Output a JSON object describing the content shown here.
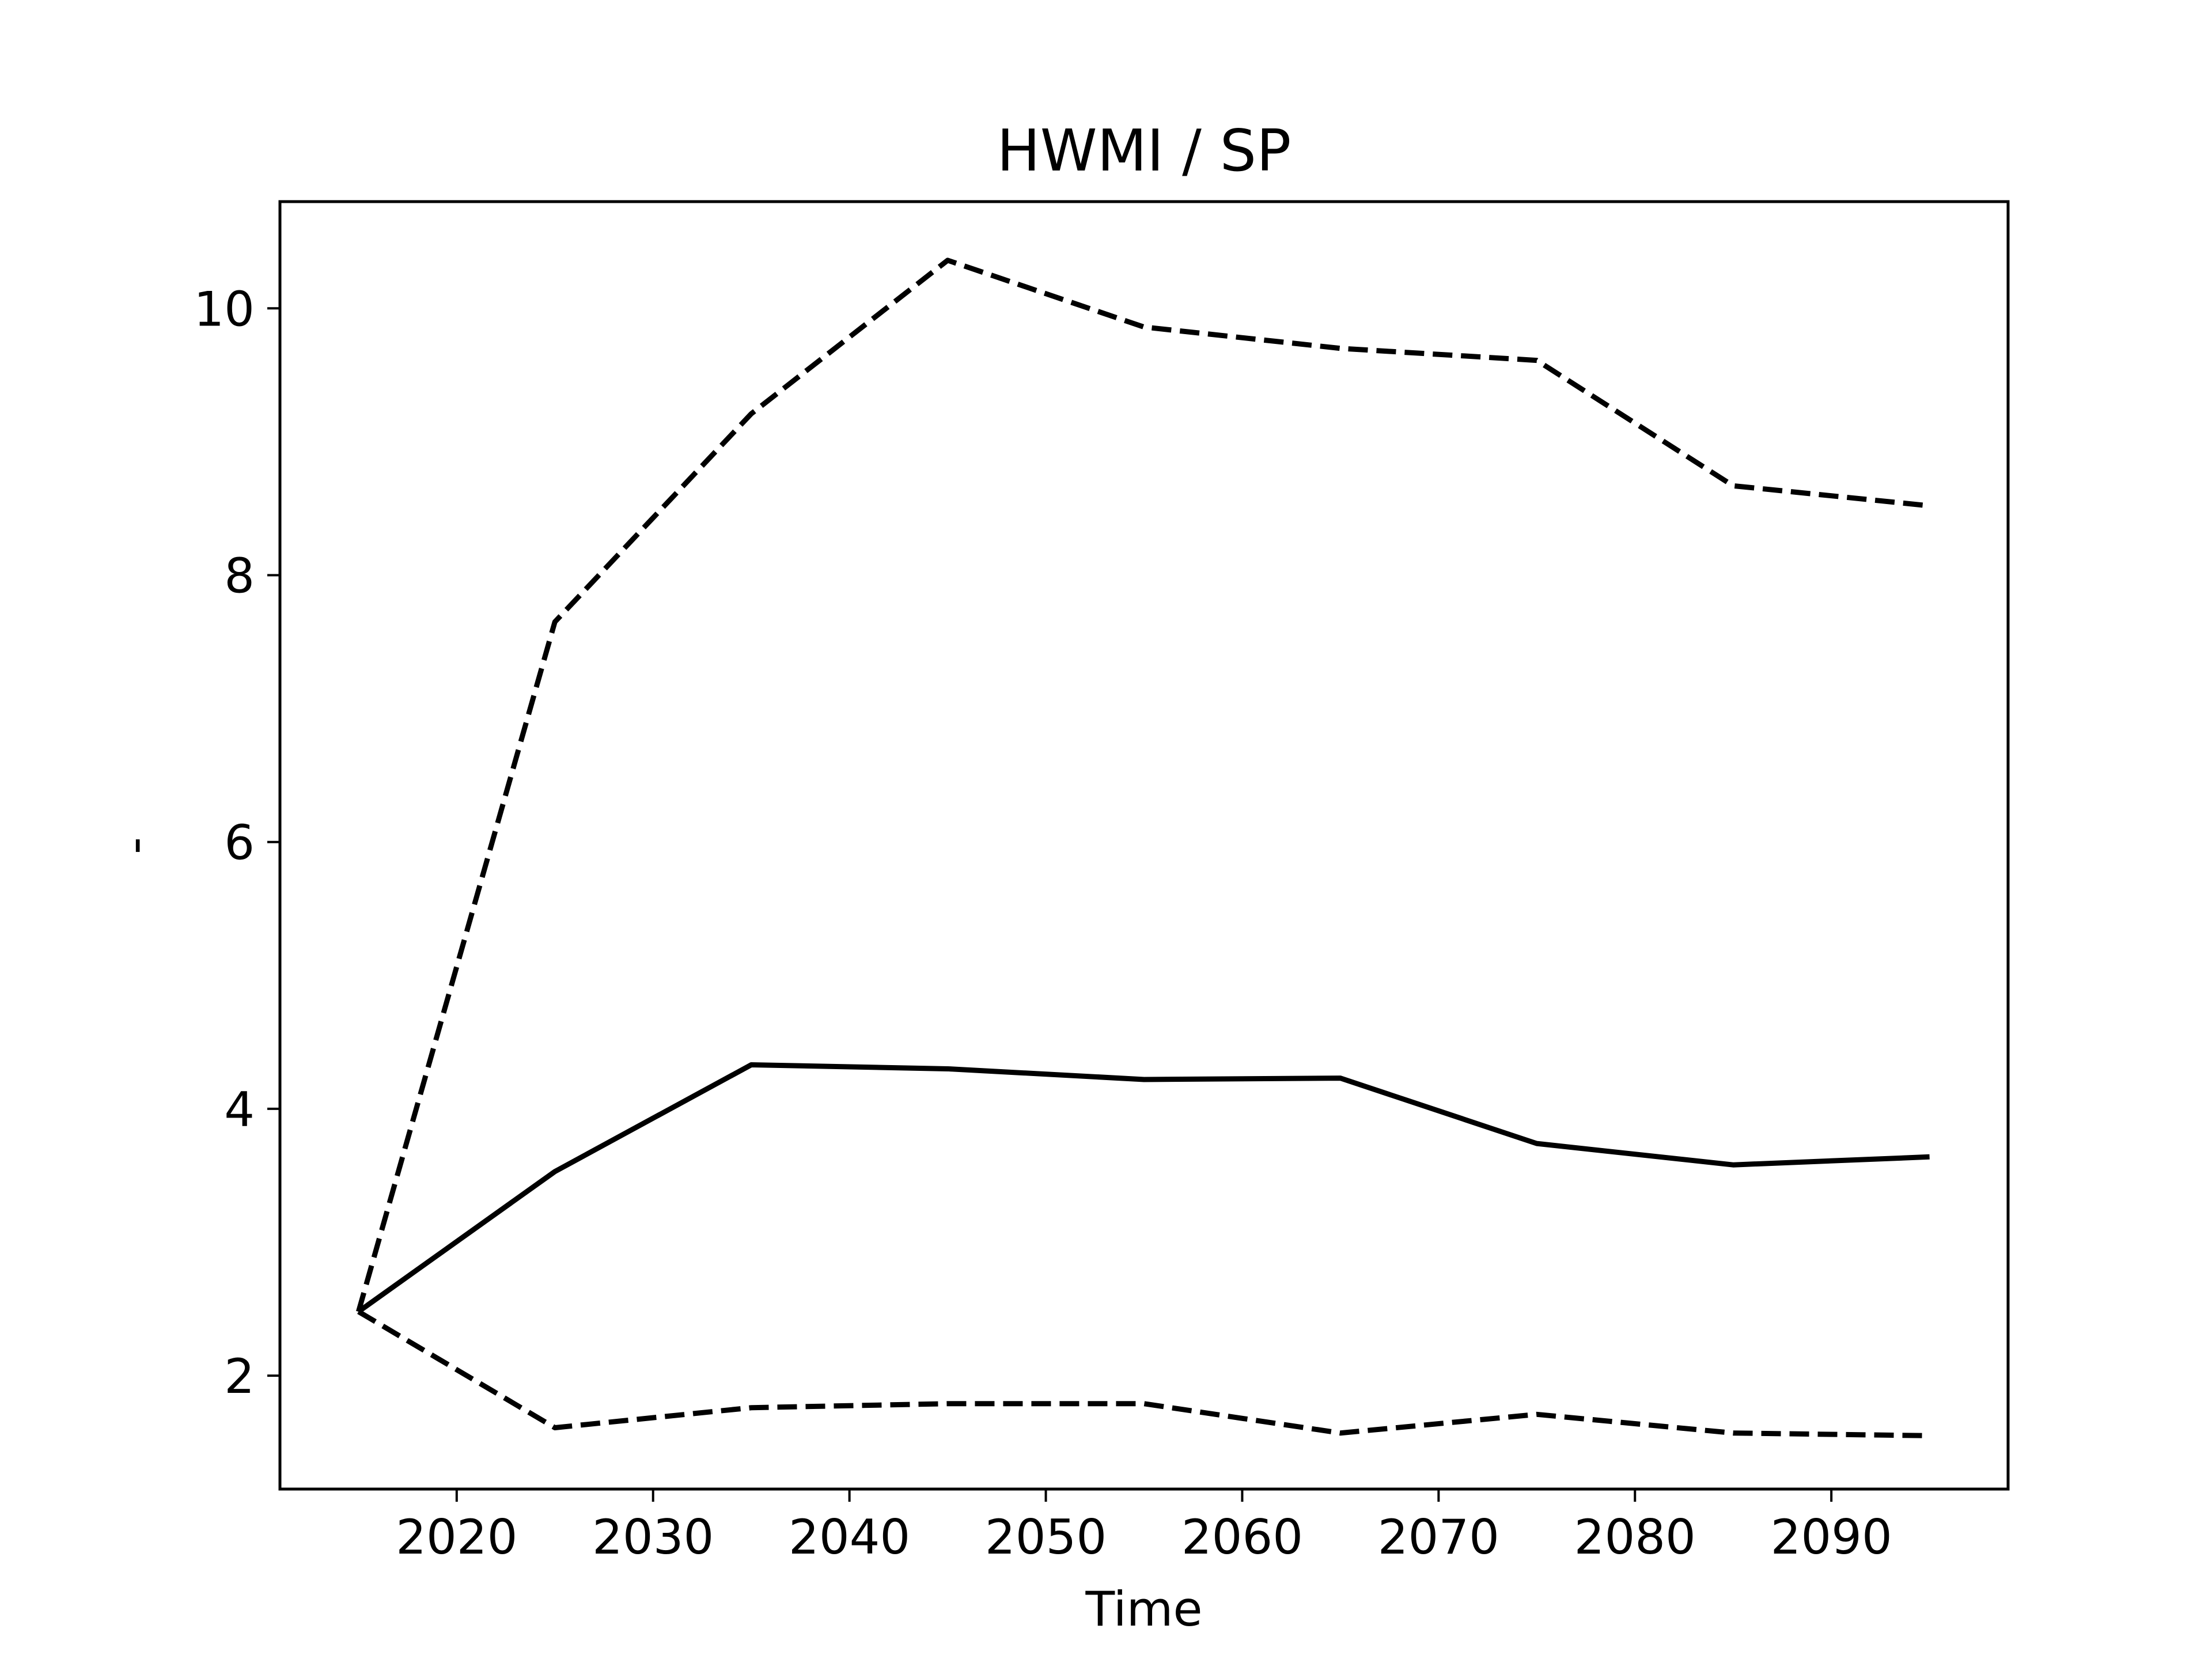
{
  "chart_data": {
    "type": "line",
    "title": "HWMI / SP",
    "xlabel": "Time",
    "ylabel": "-",
    "xlim": [
      2011,
      2099
    ],
    "ylim": [
      1.15,
      10.8
    ],
    "xticks": [
      2020,
      2030,
      2040,
      2050,
      2060,
      2070,
      2080,
      2090
    ],
    "yticks": [
      2,
      4,
      6,
      8,
      10
    ],
    "grid": false,
    "x": [
      2015,
      2025,
      2035,
      2045,
      2055,
      2065,
      2075,
      2085,
      2095
    ],
    "series": [
      {
        "style": "solid",
        "color": "#000000",
        "values": [
          2.48,
          3.53,
          4.33,
          4.3,
          4.22,
          4.23,
          3.74,
          3.58,
          3.64
        ]
      },
      {
        "style": "dashed",
        "color": "#000000",
        "values": [
          2.48,
          7.65,
          9.21,
          10.36,
          9.86,
          9.7,
          9.61,
          8.67,
          8.52
        ]
      },
      {
        "style": "dashed",
        "color": "#000000",
        "values": [
          2.48,
          1.61,
          1.76,
          1.79,
          1.79,
          1.57,
          1.71,
          1.57,
          1.55
        ]
      }
    ]
  }
}
